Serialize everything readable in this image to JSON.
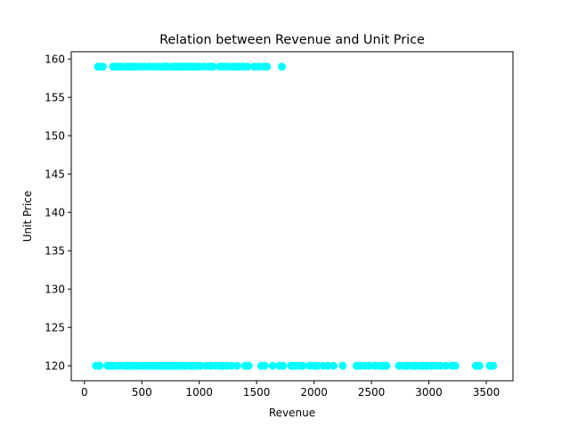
{
  "chart_data": {
    "type": "scatter",
    "title": "Relation between Revenue and Unit Price",
    "xlabel": "Revenue",
    "ylabel": "Unit Price",
    "xlim": [
      -115,
      3733
    ],
    "ylim": [
      118.05,
      160.95
    ],
    "xticks": [
      0,
      500,
      1000,
      1500,
      2000,
      2500,
      3000,
      3500
    ],
    "yticks": [
      120,
      125,
      130,
      135,
      140,
      145,
      150,
      155,
      160
    ],
    "grid": false,
    "legend": "none",
    "marker_color": "#00ffff",
    "series": [
      {
        "x": [
          118,
          140,
          160,
          250,
          270,
          290,
          320,
          360,
          380,
          400,
          420,
          450,
          480,
          520,
          560,
          600,
          640,
          680,
          700,
          720,
          760,
          780,
          800,
          830,
          860,
          890,
          920,
          950,
          980,
          1000,
          1040,
          1080,
          1100,
          1120,
          1180,
          1200,
          1220,
          1250,
          1290,
          1320,
          1350,
          1380,
          1420,
          1480,
          1520,
          1560,
          1590,
          1720
        ],
        "y": [
          159,
          159,
          159,
          159,
          159,
          159,
          159,
          159,
          159,
          159,
          159,
          159,
          159,
          159,
          159,
          159,
          159,
          159,
          159,
          159,
          159,
          159,
          159,
          159,
          159,
          159,
          159,
          159,
          159,
          159,
          159,
          159,
          159,
          159,
          159,
          159,
          159,
          159,
          159,
          159,
          159,
          159,
          159,
          159,
          159,
          159,
          159,
          159
        ]
      },
      {
        "x": [
          100,
          130,
          200,
          230,
          260,
          300,
          340,
          370,
          400,
          430,
          460,
          500,
          530,
          560,
          590,
          620,
          650,
          680,
          700,
          720,
          740,
          760,
          790,
          820,
          850,
          880,
          920,
          950,
          980,
          1010,
          1060,
          1100,
          1140,
          1180,
          1200,
          1240,
          1280,
          1330,
          1400,
          1430,
          1540,
          1570,
          1640,
          1700,
          1730,
          1800,
          1830,
          1870,
          1900,
          1960,
          2000,
          2030,
          2080,
          2120,
          2170,
          2250,
          2370,
          2400,
          2440,
          2480,
          2530,
          2570,
          2600,
          2630,
          2740,
          2780,
          2810,
          2850,
          2880,
          2920,
          2950,
          2980,
          3020,
          3060,
          3100,
          3150,
          3200,
          3230,
          3410,
          3440,
          3530,
          3560
        ],
        "y": [
          120,
          120,
          120,
          120,
          120,
          120,
          120,
          120,
          120,
          120,
          120,
          120,
          120,
          120,
          120,
          120,
          120,
          120,
          120,
          120,
          120,
          120,
          120,
          120,
          120,
          120,
          120,
          120,
          120,
          120,
          120,
          120,
          120,
          120,
          120,
          120,
          120,
          120,
          120,
          120,
          120,
          120,
          120,
          120,
          120,
          120,
          120,
          120,
          120,
          120,
          120,
          120,
          120,
          120,
          120,
          120,
          120,
          120,
          120,
          120,
          120,
          120,
          120,
          120,
          120,
          120,
          120,
          120,
          120,
          120,
          120,
          120,
          120,
          120,
          120,
          120,
          120,
          120,
          120,
          120,
          120,
          120
        ]
      }
    ]
  }
}
